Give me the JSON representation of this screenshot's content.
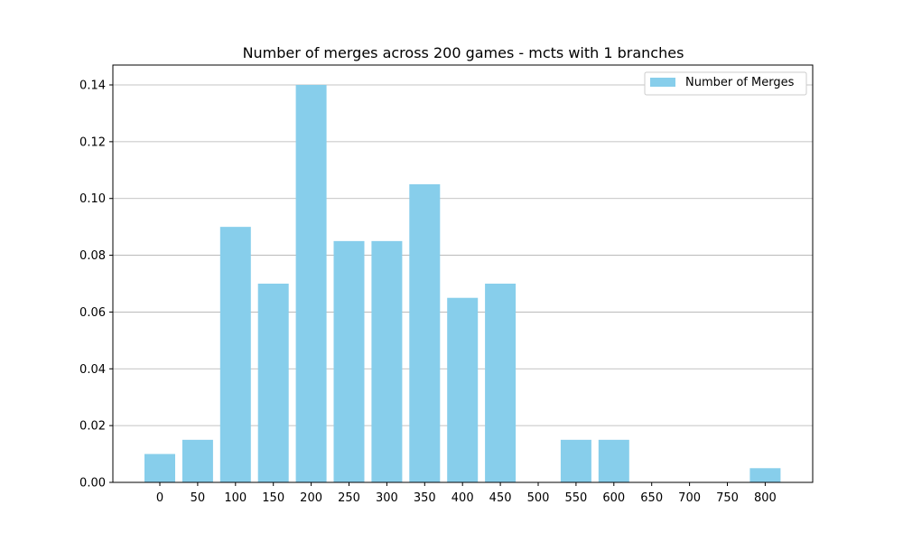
{
  "chart_data": {
    "type": "bar",
    "title": "Number of merges across 200 games - mcts with 1 branches",
    "xlabel": "",
    "ylabel": "",
    "categories": [
      "0",
      "50",
      "100",
      "150",
      "200",
      "250",
      "300",
      "350",
      "400",
      "450",
      "500",
      "550",
      "600",
      "650",
      "700",
      "750",
      "800"
    ],
    "series": [
      {
        "name": "Number of Merges",
        "values": [
          0.01,
          0.015,
          0.09,
          0.07,
          0.14,
          0.085,
          0.085,
          0.105,
          0.065,
          0.07,
          0.0,
          0.015,
          0.015,
          0.0,
          0.0,
          0.0,
          0.005
        ]
      }
    ],
    "ylim": [
      0,
      0.147
    ],
    "yticks": [
      "0.00",
      "0.02",
      "0.04",
      "0.06",
      "0.08",
      "0.10",
      "0.12",
      "0.14"
    ],
    "grid": "y",
    "legend_position": "top-right",
    "bar_color": "#87ceeb"
  }
}
